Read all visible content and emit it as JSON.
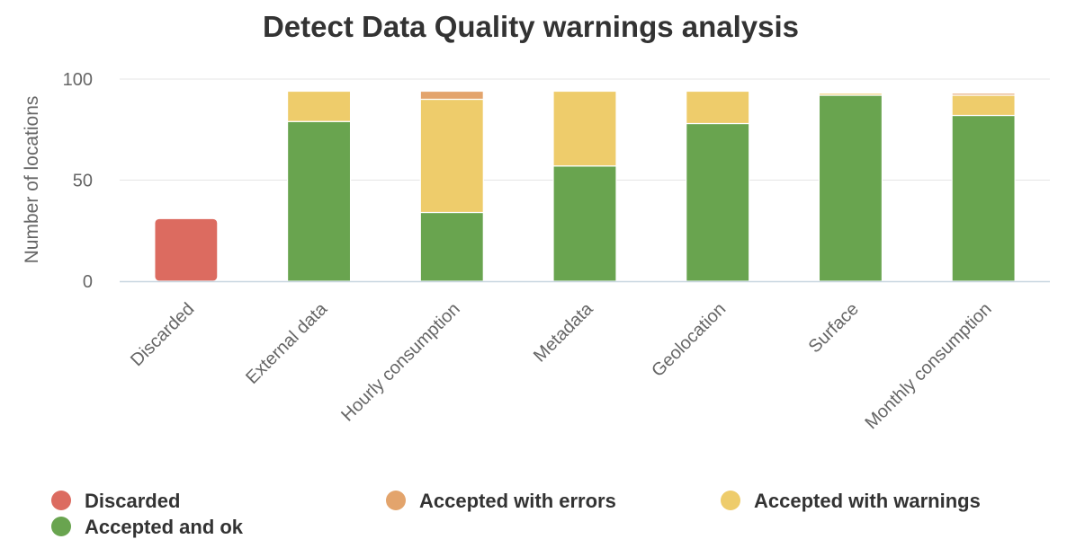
{
  "chart_data": {
    "type": "bar",
    "stacked": true,
    "title": "Detect Data Quality warnings analysis",
    "xlabel": "",
    "ylabel": "Number of locations",
    "ylim": [
      0,
      100
    ],
    "yticks": [
      0,
      50,
      100
    ],
    "grid": true,
    "legend_position": "bottom",
    "categories": [
      "Discarded",
      "External data",
      "Hourly consumption",
      "Metadata",
      "Geolocation",
      "Surface",
      "Monthly consumption"
    ],
    "series": [
      {
        "name": "Discarded",
        "color": "#dc6b60",
        "values": [
          31,
          0,
          0,
          0,
          0,
          0,
          0
        ]
      },
      {
        "name": "Accepted and ok",
        "color": "#69a44f",
        "values": [
          0,
          79,
          34,
          57,
          78,
          92,
          82
        ]
      },
      {
        "name": "Accepted with warnings",
        "color": "#eecc6b",
        "values": [
          0,
          15,
          56,
          37,
          16,
          1,
          10
        ]
      },
      {
        "name": "Accepted with errors",
        "color": "#e3a46c",
        "values": [
          0,
          0,
          4,
          0,
          0,
          0,
          1
        ]
      }
    ],
    "legend": [
      {
        "name": "Discarded",
        "color": "#dc6b60"
      },
      {
        "name": "Accepted with errors",
        "color": "#e3a46c"
      },
      {
        "name": "Accepted with warnings",
        "color": "#eecc6b"
      },
      {
        "name": "Accepted and ok",
        "color": "#69a44f"
      }
    ]
  }
}
